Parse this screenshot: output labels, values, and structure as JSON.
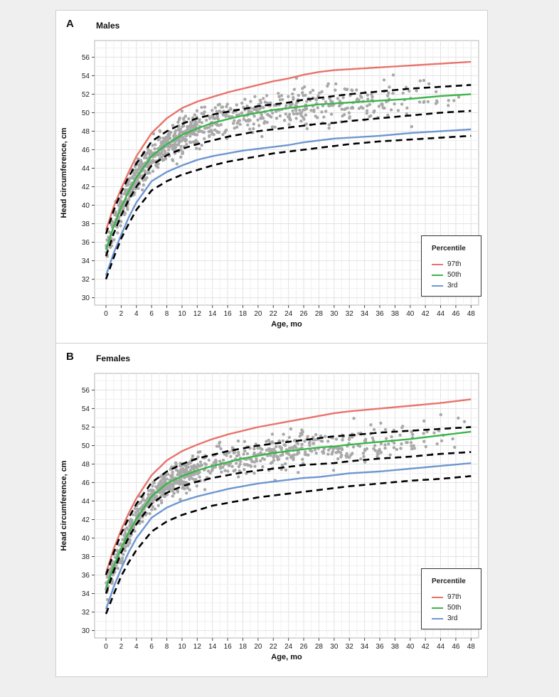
{
  "chart_data": [
    {
      "type": "line",
      "panel": "A",
      "title": "Males",
      "xlabel": "Age, mo",
      "ylabel": "Head circumference, cm",
      "xlim": [
        -1.5,
        49
      ],
      "ylim": [
        29.2,
        57.8
      ],
      "xticks": [
        0,
        2,
        4,
        6,
        8,
        10,
        12,
        14,
        16,
        18,
        20,
        22,
        24,
        26,
        28,
        30,
        32,
        34,
        36,
        38,
        40,
        42,
        44,
        46,
        48
      ],
      "yticks": [
        30,
        32,
        34,
        36,
        38,
        40,
        42,
        44,
        46,
        48,
        50,
        52,
        54,
        56
      ],
      "grid": true,
      "legend": {
        "title": "Percentile",
        "position": "bottom-right"
      },
      "series": [
        {
          "name": "97th",
          "color": "#e8736b",
          "style": "solid",
          "x": [
            0,
            1,
            2,
            3,
            4,
            6,
            8,
            10,
            12,
            14,
            16,
            18,
            20,
            22,
            24,
            26,
            28,
            30,
            32,
            36,
            40,
            44,
            48
          ],
          "y": [
            37.3,
            39.8,
            41.8,
            43.6,
            45.3,
            47.8,
            49.4,
            50.5,
            51.2,
            51.7,
            52.2,
            52.6,
            53.0,
            53.4,
            53.7,
            54.1,
            54.4,
            54.6,
            54.7,
            54.9,
            55.1,
            55.3,
            55.5
          ]
        },
        {
          "name": "50th",
          "color": "#3bb54a",
          "style": "solid",
          "x": [
            0,
            1,
            2,
            3,
            4,
            6,
            8,
            10,
            12,
            14,
            16,
            18,
            20,
            22,
            24,
            26,
            28,
            30,
            32,
            36,
            40,
            44,
            48
          ],
          "y": [
            35.2,
            37.7,
            39.8,
            41.5,
            43.0,
            45.3,
            46.6,
            47.6,
            48.3,
            48.9,
            49.3,
            49.7,
            50.0,
            50.3,
            50.5,
            50.7,
            50.9,
            51.0,
            51.1,
            51.3,
            51.5,
            51.8,
            52.0
          ]
        },
        {
          "name": "3rd",
          "color": "#6e97d0",
          "style": "solid",
          "x": [
            0,
            1,
            2,
            3,
            4,
            6,
            8,
            10,
            12,
            14,
            16,
            18,
            20,
            22,
            24,
            26,
            28,
            30,
            32,
            36,
            40,
            44,
            48
          ],
          "y": [
            32.4,
            34.8,
            36.8,
            38.7,
            40.3,
            42.6,
            43.6,
            44.3,
            44.9,
            45.3,
            45.6,
            45.9,
            46.1,
            46.3,
            46.5,
            46.8,
            47.0,
            47.2,
            47.3,
            47.5,
            47.8,
            48.0,
            48.2
          ]
        },
        {
          "name": "",
          "color": "#000000",
          "style": "dashed",
          "x": [
            0,
            1,
            2,
            3,
            4,
            6,
            8,
            10,
            12,
            14,
            16,
            18,
            20,
            22,
            24,
            26,
            28,
            30,
            32,
            36,
            40,
            44,
            48
          ],
          "y": [
            36.9,
            39.4,
            41.4,
            43.1,
            44.5,
            46.9,
            48.0,
            48.8,
            49.4,
            49.8,
            50.1,
            50.4,
            50.7,
            50.9,
            51.1,
            51.4,
            51.6,
            51.8,
            52.0,
            52.3,
            52.6,
            52.8,
            53.0
          ]
        },
        {
          "name": "",
          "color": "#000000",
          "style": "dashed",
          "x": [
            0,
            1,
            2,
            3,
            4,
            6,
            8,
            10,
            12,
            14,
            16,
            18,
            20,
            22,
            24,
            26,
            28,
            30,
            32,
            36,
            40,
            44,
            48
          ],
          "y": [
            34.5,
            36.9,
            38.9,
            40.6,
            42.0,
            44.3,
            45.4,
            46.1,
            46.6,
            47.0,
            47.4,
            47.7,
            48.0,
            48.2,
            48.4,
            48.6,
            48.8,
            48.9,
            49.1,
            49.4,
            49.7,
            50.0,
            50.2
          ]
        },
        {
          "name": "",
          "color": "#000000",
          "style": "dashed",
          "x": [
            0,
            1,
            2,
            3,
            4,
            6,
            8,
            10,
            12,
            14,
            16,
            18,
            20,
            22,
            24,
            26,
            28,
            30,
            32,
            36,
            40,
            44,
            48
          ],
          "y": [
            32.0,
            34.3,
            36.4,
            38.0,
            39.5,
            41.6,
            42.6,
            43.3,
            43.8,
            44.3,
            44.7,
            45.0,
            45.3,
            45.6,
            45.8,
            46.0,
            46.2,
            46.4,
            46.6,
            46.9,
            47.1,
            47.3,
            47.5
          ]
        }
      ],
      "scatter": {
        "color": "#a9a9a9"
      }
    },
    {
      "type": "line",
      "panel": "B",
      "title": "Females",
      "xlabel": "Age, mo",
      "ylabel": "Head circumference, cm",
      "xlim": [
        -1.5,
        49
      ],
      "ylim": [
        29.2,
        57.8
      ],
      "xticks": [
        0,
        2,
        4,
        6,
        8,
        10,
        12,
        14,
        16,
        18,
        20,
        22,
        24,
        26,
        28,
        30,
        32,
        34,
        36,
        38,
        40,
        42,
        44,
        46,
        48
      ],
      "yticks": [
        30,
        32,
        34,
        36,
        38,
        40,
        42,
        44,
        46,
        48,
        50,
        52,
        54,
        56
      ],
      "grid": true,
      "legend": {
        "title": "Percentile",
        "position": "bottom-right"
      },
      "series": [
        {
          "name": "97th",
          "color": "#e8736b",
          "style": "solid",
          "x": [
            0,
            1,
            2,
            3,
            4,
            6,
            8,
            10,
            12,
            14,
            16,
            18,
            20,
            22,
            24,
            26,
            28,
            30,
            32,
            36,
            40,
            44,
            48
          ],
          "y": [
            36.2,
            38.8,
            40.9,
            42.7,
            44.3,
            46.8,
            48.4,
            49.4,
            50.1,
            50.7,
            51.2,
            51.6,
            52.0,
            52.3,
            52.6,
            52.9,
            53.2,
            53.5,
            53.7,
            54.0,
            54.3,
            54.6,
            55.0
          ]
        },
        {
          "name": "50th",
          "color": "#3bb54a",
          "style": "solid",
          "x": [
            0,
            1,
            2,
            3,
            4,
            6,
            8,
            10,
            12,
            14,
            16,
            18,
            20,
            22,
            24,
            26,
            28,
            30,
            32,
            36,
            40,
            44,
            48
          ],
          "y": [
            34.6,
            36.9,
            38.9,
            40.6,
            42.1,
            44.5,
            45.9,
            46.7,
            47.3,
            47.8,
            48.2,
            48.6,
            48.9,
            49.2,
            49.4,
            49.6,
            49.8,
            49.9,
            50.1,
            50.4,
            50.7,
            51.1,
            51.5
          ]
        },
        {
          "name": "3rd",
          "color": "#6e97d0",
          "style": "solid",
          "x": [
            0,
            1,
            2,
            3,
            4,
            6,
            8,
            10,
            12,
            14,
            16,
            18,
            20,
            22,
            24,
            26,
            28,
            30,
            32,
            36,
            40,
            44,
            48
          ],
          "y": [
            32.3,
            34.7,
            36.7,
            38.5,
            40.0,
            42.2,
            43.3,
            44.0,
            44.5,
            44.9,
            45.3,
            45.6,
            45.9,
            46.1,
            46.3,
            46.5,
            46.6,
            46.8,
            47.0,
            47.2,
            47.5,
            47.8,
            48.1
          ]
        },
        {
          "name": "",
          "color": "#000000",
          "style": "dashed",
          "x": [
            0,
            1,
            2,
            3,
            4,
            6,
            8,
            10,
            12,
            14,
            16,
            18,
            20,
            22,
            24,
            26,
            28,
            30,
            32,
            36,
            40,
            44,
            48
          ],
          "y": [
            36.0,
            38.4,
            40.5,
            42.2,
            43.7,
            46.0,
            47.2,
            48.0,
            48.6,
            49.0,
            49.4,
            49.7,
            50.0,
            50.2,
            50.4,
            50.6,
            50.8,
            51.0,
            51.1,
            51.4,
            51.6,
            51.8,
            52.0
          ]
        },
        {
          "name": "",
          "color": "#000000",
          "style": "dashed",
          "x": [
            0,
            1,
            2,
            3,
            4,
            6,
            8,
            10,
            12,
            14,
            16,
            18,
            20,
            22,
            24,
            26,
            28,
            30,
            32,
            36,
            40,
            44,
            48
          ],
          "y": [
            34.0,
            36.4,
            38.4,
            40.1,
            41.5,
            43.7,
            44.9,
            45.6,
            46.1,
            46.5,
            46.8,
            47.1,
            47.3,
            47.5,
            47.7,
            47.9,
            48.0,
            48.1,
            48.3,
            48.6,
            48.8,
            49.1,
            49.3
          ]
        },
        {
          "name": "",
          "color": "#000000",
          "style": "dashed",
          "x": [
            0,
            1,
            2,
            3,
            4,
            6,
            8,
            10,
            12,
            14,
            16,
            18,
            20,
            22,
            24,
            26,
            28,
            30,
            32,
            36,
            40,
            44,
            48
          ],
          "y": [
            31.8,
            33.9,
            35.9,
            37.4,
            38.7,
            40.7,
            41.8,
            42.5,
            43.0,
            43.5,
            43.8,
            44.1,
            44.4,
            44.6,
            44.8,
            45.0,
            45.2,
            45.4,
            45.6,
            45.9,
            46.2,
            46.4,
            46.7
          ]
        }
      ],
      "scatter": {
        "color": "#a9a9a9"
      }
    }
  ]
}
